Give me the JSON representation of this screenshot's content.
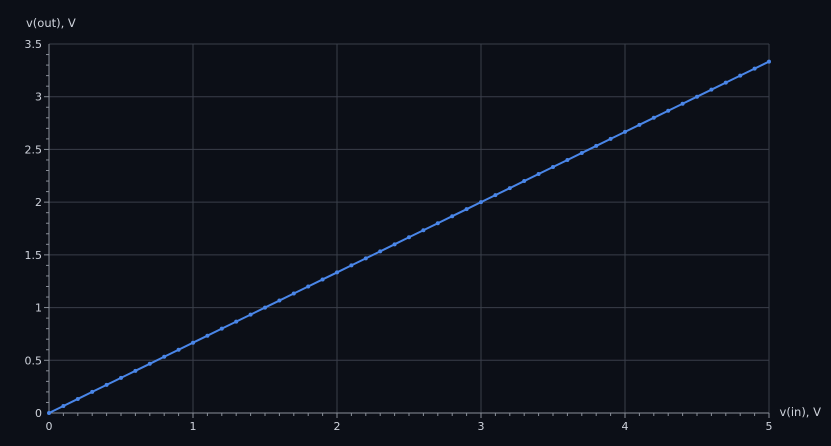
{
  "chart_data": {
    "type": "line",
    "title": "",
    "xlabel": "v(in), V",
    "ylabel": "v(out), V",
    "xlim": [
      0,
      5
    ],
    "ylim": [
      0,
      3.5
    ],
    "x_ticks": [
      "0",
      "1",
      "2",
      "3",
      "4",
      "5"
    ],
    "y_ticks": [
      "0",
      "0.5",
      "1",
      "1.5",
      "2",
      "2.5",
      "3",
      "3.5"
    ],
    "grid": true,
    "series": [
      {
        "x": [
          0,
          0.1,
          0.2,
          0.3,
          0.4,
          0.5,
          0.6,
          0.7,
          0.8,
          0.9,
          1.0,
          1.1,
          1.2,
          1.3,
          1.4,
          1.5,
          1.6,
          1.7,
          1.8,
          1.9,
          2.0,
          2.1,
          2.2,
          2.3,
          2.4,
          2.5,
          2.6,
          2.7,
          2.8,
          2.9,
          3.0,
          3.1,
          3.2,
          3.3,
          3.4,
          3.5,
          3.6,
          3.7,
          3.8,
          3.9,
          4.0,
          4.1,
          4.2,
          4.3,
          4.4,
          4.5,
          4.6,
          4.7,
          4.8,
          4.9,
          5.0
        ],
        "y": [
          0,
          0.0667,
          0.1333,
          0.2,
          0.2667,
          0.3333,
          0.4,
          0.4667,
          0.5333,
          0.6,
          0.6667,
          0.7333,
          0.8,
          0.8667,
          0.9333,
          1.0,
          1.0667,
          1.1333,
          1.2,
          1.2667,
          1.3333,
          1.4,
          1.4667,
          1.5333,
          1.6,
          1.6667,
          1.7333,
          1.8,
          1.8667,
          1.9333,
          2.0,
          2.0667,
          2.1333,
          2.2,
          2.2667,
          2.3333,
          2.4,
          2.4667,
          2.5333,
          2.6,
          2.6667,
          2.7333,
          2.8,
          2.8667,
          2.9333,
          3.0,
          3.0667,
          3.1333,
          3.2,
          3.2667,
          3.3333
        ],
        "color": "#4a86e8"
      }
    ]
  },
  "colors": {
    "background": "#0c0f17",
    "grid": "#3a3f4a",
    "axis": "#8a8f99",
    "text": "#cfd3dc",
    "series": "#4a86e8"
  }
}
